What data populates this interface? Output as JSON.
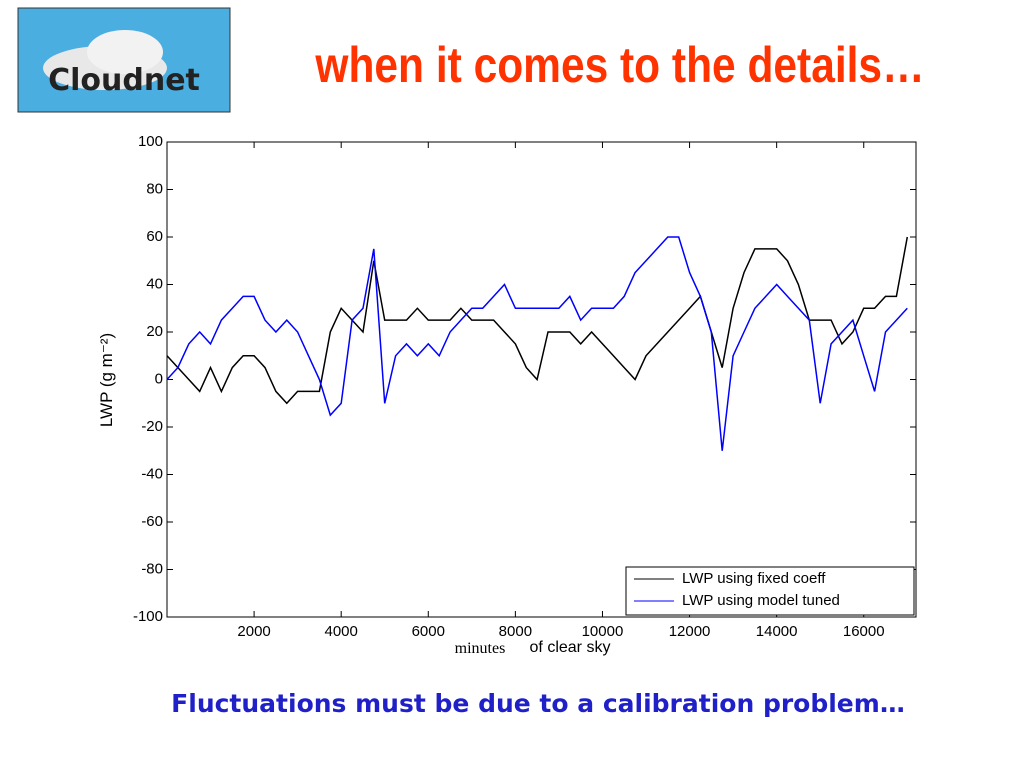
{
  "logo": "Cloudnet",
  "title": "when it comes to the details…",
  "caption": "Fluctuations must be due to a calibration problem…",
  "chart_data": {
    "type": "line",
    "ylabel": "LWP  (g m⁻²)",
    "xlabel": "of clear sky",
    "xlabel_overlay": "minutes",
    "x": [
      0,
      250,
      500,
      750,
      1000,
      1250,
      1500,
      1750,
      2000,
      2250,
      2500,
      2750,
      3000,
      3250,
      3500,
      3750,
      4000,
      4250,
      4500,
      4750,
      5000,
      5250,
      5500,
      5750,
      6000,
      6250,
      6500,
      6750,
      7000,
      7250,
      7500,
      7750,
      8000,
      8250,
      8500,
      8750,
      9000,
      9250,
      9500,
      9750,
      10000,
      10250,
      10500,
      10750,
      11000,
      11250,
      11500,
      11750,
      12000,
      12250,
      12500,
      12750,
      13000,
      13250,
      13500,
      13750,
      14000,
      14250,
      14500,
      14750,
      15000,
      15250,
      15500,
      15750,
      16000,
      16250,
      16500,
      16750,
      17000
    ],
    "series": [
      {
        "name": "LWP using fixed coeff",
        "color": "#000000",
        "values": [
          10,
          5,
          0,
          -5,
          5,
          -5,
          5,
          10,
          10,
          5,
          -5,
          -10,
          -5,
          -5,
          -5,
          20,
          30,
          25,
          20,
          50,
          25,
          25,
          25,
          30,
          25,
          25,
          25,
          30,
          25,
          25,
          25,
          20,
          15,
          5,
          0,
          20,
          20,
          20,
          15,
          20,
          15,
          10,
          5,
          0,
          10,
          15,
          20,
          25,
          30,
          35,
          20,
          5,
          30,
          45,
          55,
          55,
          55,
          50,
          40,
          25,
          25,
          25,
          15,
          20,
          30,
          30,
          35,
          35,
          60
        ]
      },
      {
        "name": "LWP using model tuned",
        "color": "#0000ff",
        "values": [
          0,
          5,
          15,
          20,
          15,
          25,
          30,
          35,
          35,
          25,
          20,
          25,
          20,
          10,
          0,
          -15,
          -10,
          25,
          30,
          55,
          -10,
          10,
          15,
          10,
          15,
          10,
          20,
          25,
          30,
          30,
          35,
          40,
          30,
          30,
          30,
          30,
          30,
          35,
          25,
          30,
          30,
          30,
          35,
          45,
          50,
          55,
          60,
          60,
          45,
          35,
          20,
          -30,
          10,
          20,
          30,
          35,
          40,
          35,
          30,
          25,
          -10,
          15,
          20,
          25,
          10,
          -5,
          20,
          25,
          30
        ]
      }
    ],
    "xlim": [
      0,
      17200
    ],
    "ylim": [
      -100,
      100
    ],
    "xticks": [
      2000,
      4000,
      6000,
      8000,
      10000,
      12000,
      14000,
      16000
    ],
    "yticks": [
      -100,
      -80,
      -60,
      -40,
      -20,
      0,
      20,
      40,
      60,
      80,
      100
    ],
    "legend": "lower-right"
  }
}
